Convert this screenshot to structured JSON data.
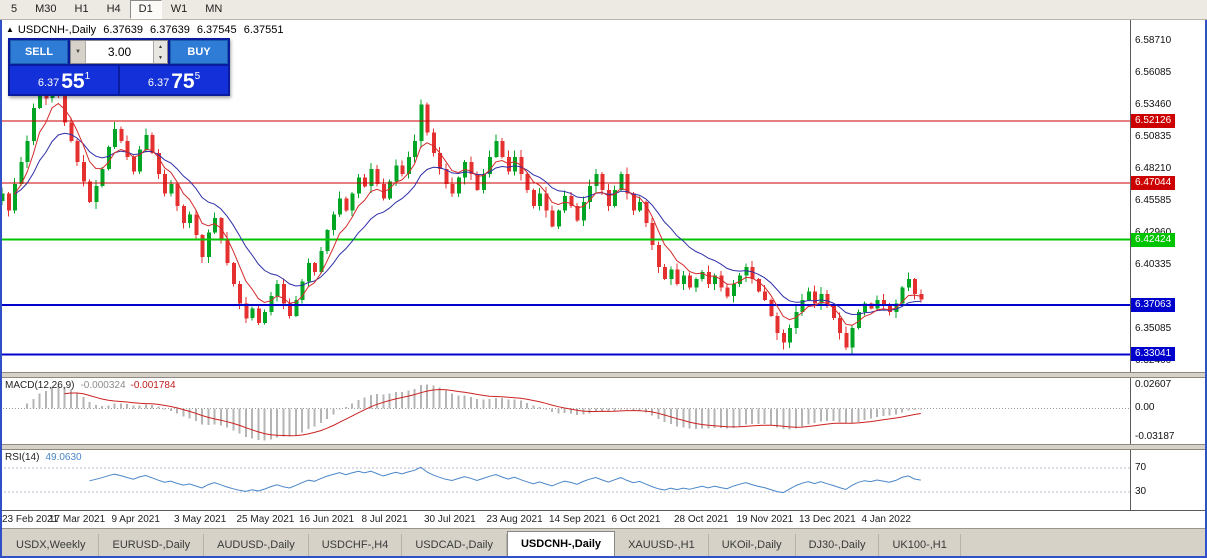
{
  "toolbar": {
    "periods": [
      "5",
      "M30",
      "H1",
      "H4",
      "D1",
      "W1",
      "MN"
    ],
    "active_period": "D1"
  },
  "icons": {
    "symbol_marker": "▲",
    "volume_up": "▲",
    "volume_down": "▼",
    "volume_dropdown": "▼"
  },
  "chart_header": {
    "symbol": "USDCNH-,Daily",
    "open": "6.37639",
    "high": "6.37639",
    "low": "6.37545",
    "close": "6.37551"
  },
  "trade_panel": {
    "sell_label": "SELL",
    "buy_label": "BUY",
    "volume": "3.00",
    "sell_price": {
      "prefix": "6.37",
      "big": "55",
      "sup": "1"
    },
    "buy_price": {
      "prefix": "6.37",
      "big": "75",
      "sup": "5"
    }
  },
  "chart_data": {
    "type": "candlestick",
    "title": "USDCNH-,Daily",
    "up_color": "#00A524",
    "down_color": "#E53030",
    "ma_fast_color": "#D42A2A",
    "ma_slow_color": "#2F2FA8",
    "y_axis": {
      "min": 6.316,
      "max": 6.604,
      "ticks": [
        {
          "text": "6.58710",
          "price": 6.5871
        },
        {
          "text": "6.56085",
          "price": 6.56085
        },
        {
          "text": "6.53460",
          "price": 6.5346
        },
        {
          "text": "6.50835",
          "price": 6.50835
        },
        {
          "text": "6.48210",
          "price": 6.4821
        },
        {
          "text": "6.45585",
          "price": 6.45585
        },
        {
          "text": "6.42960",
          "price": 6.4296
        },
        {
          "text": "6.40335",
          "price": 6.40335
        },
        {
          "text": "6.35085",
          "price": 6.35085
        },
        {
          "text": "6.32460",
          "price": 6.3246
        }
      ]
    },
    "levels": [
      {
        "price": 6.52126,
        "label": "6.52126",
        "color": "#CC0000",
        "w": 1
      },
      {
        "price": 6.47044,
        "label": "6.47044",
        "color": "#CC0000",
        "w": 1
      },
      {
        "price": 6.42424,
        "label": "6.42424",
        "color": "#00C400",
        "w": 2
      },
      {
        "price": 6.37063,
        "label": "6.37063",
        "color": "#0000CC",
        "w": 2
      },
      {
        "price": 6.33041,
        "label": "6.33041",
        "color": "#0000CC",
        "w": 2
      }
    ],
    "closes": [
      6.462,
      6.448,
      6.47,
      6.488,
      6.505,
      6.532,
      6.556,
      6.54,
      6.562,
      6.545,
      6.52,
      6.505,
      6.488,
      6.472,
      6.455,
      6.468,
      6.482,
      6.5,
      6.515,
      6.505,
      6.492,
      6.48,
      6.498,
      6.51,
      6.495,
      6.478,
      6.462,
      6.47,
      6.452,
      6.438,
      6.445,
      6.428,
      6.41,
      6.43,
      6.442,
      6.425,
      6.405,
      6.388,
      6.372,
      6.36,
      6.368,
      6.356,
      6.365,
      6.378,
      6.388,
      6.372,
      6.362,
      6.375,
      6.39,
      6.405,
      6.398,
      6.415,
      6.432,
      6.445,
      6.458,
      6.448,
      6.462,
      6.475,
      6.468,
      6.482,
      6.47,
      6.458,
      6.472,
      6.485,
      6.478,
      6.492,
      6.505,
      6.535,
      6.512,
      6.495,
      6.482,
      6.47,
      6.462,
      6.475,
      6.488,
      6.478,
      6.465,
      6.478,
      6.492,
      6.505,
      6.492,
      6.48,
      6.492,
      6.478,
      6.465,
      6.452,
      6.462,
      6.448,
      6.435,
      6.448,
      6.46,
      6.452,
      6.44,
      6.455,
      6.468,
      6.478,
      6.465,
      6.452,
      6.465,
      6.478,
      6.462,
      6.448,
      6.455,
      6.438,
      6.42,
      6.402,
      6.392,
      6.4,
      6.388,
      6.395,
      6.385,
      6.392,
      6.398,
      6.388,
      6.395,
      6.385,
      6.378,
      6.388,
      6.395,
      6.402,
      6.392,
      6.382,
      6.375,
      6.362,
      6.348,
      6.34,
      6.352,
      6.365,
      6.375,
      6.382,
      6.372,
      6.38,
      6.37,
      6.36,
      6.348,
      6.336,
      6.352,
      6.365,
      6.372,
      6.368,
      6.375,
      6.37,
      6.365,
      6.372,
      6.385,
      6.392,
      6.38,
      6.3755
    ],
    "x_axis": {
      "labels": [
        {
          "text": "23 Feb 2021",
          "i": 2
        },
        {
          "text": "17 Mar 2021",
          "i": 12
        },
        {
          "text": "9 Apr 2021",
          "i": 22
        },
        {
          "text": "3 May 2021",
          "i": 32
        },
        {
          "text": "25 May 2021",
          "i": 42
        },
        {
          "text": "16 Jun 2021",
          "i": 52
        },
        {
          "text": "8 Jul 2021",
          "i": 62
        },
        {
          "text": "30 Jul 2021",
          "i": 72
        },
        {
          "text": "23 Aug 2021",
          "i": 82
        },
        {
          "text": "14 Sep 2021",
          "i": 92
        },
        {
          "text": "6 Oct 2021",
          "i": 102
        },
        {
          "text": "28 Oct 2021",
          "i": 112
        },
        {
          "text": "19 Nov 2021",
          "i": 122
        },
        {
          "text": "13 Dec 2021",
          "i": 132
        },
        {
          "text": "4 Jan 2022",
          "i": 142
        }
      ]
    },
    "macd": {
      "label": "MACD(12,26,9)",
      "value": "-0.000324",
      "signal_value": "-0.001784",
      "range": [
        -0.035,
        0.03
      ],
      "hist_color": "#B5B5B5",
      "signal_color": "#CC2222",
      "ticks": [
        {
          "text": "0.02607",
          "v": 0.02607
        },
        {
          "text": "0.00",
          "v": 0
        },
        {
          "text": "-0.03187",
          "v": -0.03187
        }
      ]
    },
    "rsi": {
      "label": "RSI(14)",
      "value": "49.0630",
      "range": [
        0,
        100
      ],
      "levels": [
        70,
        30
      ],
      "color": "#4A86C8"
    }
  },
  "bottom_tabs": {
    "active": "USDCNH-,Daily",
    "tabs": [
      "USDX,Weekly",
      "EURUSD-,Daily",
      "AUDUSD-,Daily",
      "USDCHF-,H4",
      "USDCAD-,Daily",
      "USDCNH-,Daily",
      "XAUUSD-,H1",
      "UKOil-,Daily",
      "DJ30-,Daily",
      "UK100-,H1"
    ]
  }
}
